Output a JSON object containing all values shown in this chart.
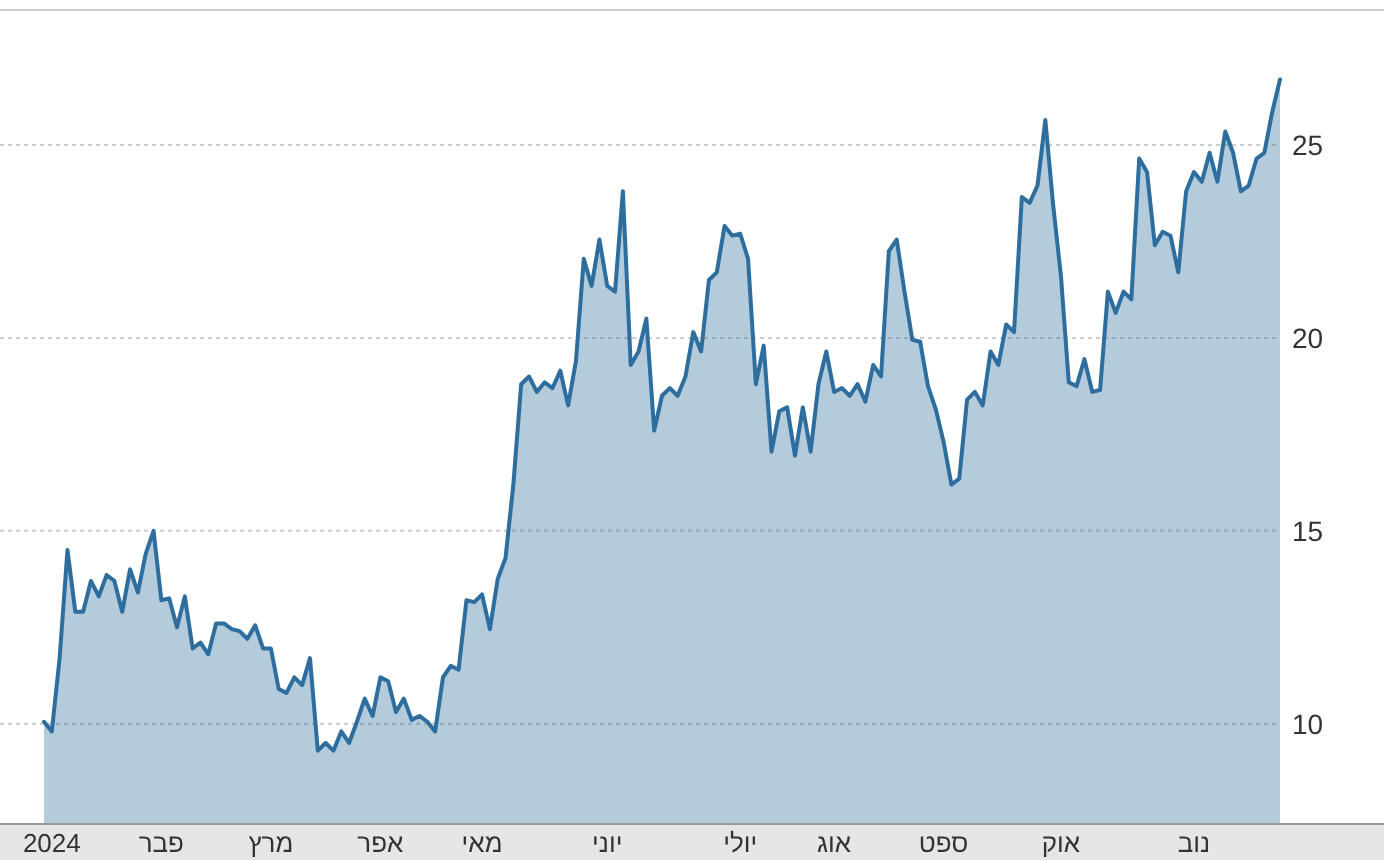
{
  "chart_data": {
    "type": "area",
    "categories": [
      null,
      "2024",
      null,
      null,
      null,
      null,
      null,
      null,
      null,
      null,
      null,
      null,
      null,
      null,
      null,
      "פבר",
      null,
      null,
      null,
      null,
      null,
      null,
      null,
      null,
      null,
      null,
      null,
      null,
      null,
      "מרץ",
      null,
      null,
      null,
      null,
      null,
      null,
      null,
      null,
      null,
      null,
      null,
      null,
      null,
      "אפר",
      null,
      null,
      null,
      null,
      null,
      null,
      null,
      null,
      null,
      null,
      null,
      null,
      "מאי",
      null,
      null,
      null,
      null,
      null,
      null,
      null,
      null,
      null,
      null,
      null,
      null,
      null,
      null,
      null,
      "יוני",
      null,
      null,
      null,
      null,
      null,
      null,
      null,
      null,
      null,
      null,
      null,
      null,
      null,
      null,
      null,
      null,
      "יולי",
      null,
      null,
      null,
      null,
      null,
      null,
      null,
      null,
      null,
      null,
      null,
      "אוג",
      null,
      null,
      null,
      null,
      null,
      null,
      null,
      null,
      null,
      null,
      null,
      null,
      null,
      "ספט",
      null,
      null,
      null,
      null,
      null,
      null,
      null,
      null,
      null,
      null,
      null,
      null,
      null,
      null,
      "אוק",
      null,
      null,
      null,
      null,
      null,
      null,
      null,
      null,
      null,
      null,
      null,
      null,
      null,
      null,
      null,
      null,
      "נוב",
      null,
      null,
      null,
      null,
      null,
      null,
      null,
      null,
      null,
      null,
      null
    ],
    "series": [
      {
        "color": "#2e6e9e",
        "values": [
          10.05,
          9.8,
          11.7,
          14.5,
          12.9,
          12.9,
          13.7,
          13.3,
          13.85,
          13.7,
          12.9,
          14.0,
          13.4,
          14.4,
          15.0,
          13.2,
          13.25,
          12.5,
          13.3,
          11.95,
          12.1,
          11.8,
          12.6,
          12.6,
          12.45,
          12.4,
          12.2,
          12.55,
          11.95,
          11.95,
          10.9,
          10.8,
          11.2,
          11.0,
          11.7,
          9.3,
          9.5,
          9.3,
          9.8,
          9.5,
          10.05,
          10.65,
          10.2,
          11.2,
          11.1,
          10.3,
          10.65,
          10.1,
          10.2,
          10.05,
          9.8,
          11.2,
          11.5,
          11.4,
          13.2,
          13.15,
          13.35,
          12.45,
          13.75,
          14.3,
          16.2,
          18.8,
          19.0,
          18.6,
          18.85,
          18.7,
          19.15,
          18.25,
          19.4,
          22.05,
          21.35,
          22.55,
          21.35,
          21.2,
          23.8,
          19.3,
          19.65,
          20.5,
          17.6,
          18.5,
          18.7,
          18.5,
          19.0,
          20.15,
          19.65,
          21.5,
          21.7,
          22.9,
          22.65,
          22.7,
          22.05,
          18.8,
          19.8,
          17.05,
          18.1,
          18.2,
          16.95,
          18.2,
          17.05,
          18.8,
          19.65,
          18.6,
          18.7,
          18.5,
          18.8,
          18.35,
          19.3,
          19.0,
          22.25,
          22.55,
          21.2,
          19.95,
          19.9,
          18.75,
          18.15,
          17.3,
          16.2,
          16.35,
          18.4,
          18.6,
          18.25,
          19.65,
          19.3,
          20.35,
          20.15,
          23.65,
          23.5,
          23.95,
          25.65,
          23.45,
          21.6,
          18.85,
          18.75,
          19.45,
          18.6,
          18.65,
          21.2,
          20.65,
          21.2,
          21.0,
          24.65,
          24.3,
          22.4,
          22.75,
          22.65,
          21.7,
          23.8,
          24.3,
          24.05,
          24.8,
          24.05,
          25.35,
          24.8,
          23.8,
          23.95,
          24.65,
          24.8,
          25.85,
          26.7
        ]
      }
    ],
    "ylim": [
      7.4,
      28.5
    ],
    "yticks": [
      10,
      15,
      20,
      25
    ],
    "grid": "y"
  }
}
